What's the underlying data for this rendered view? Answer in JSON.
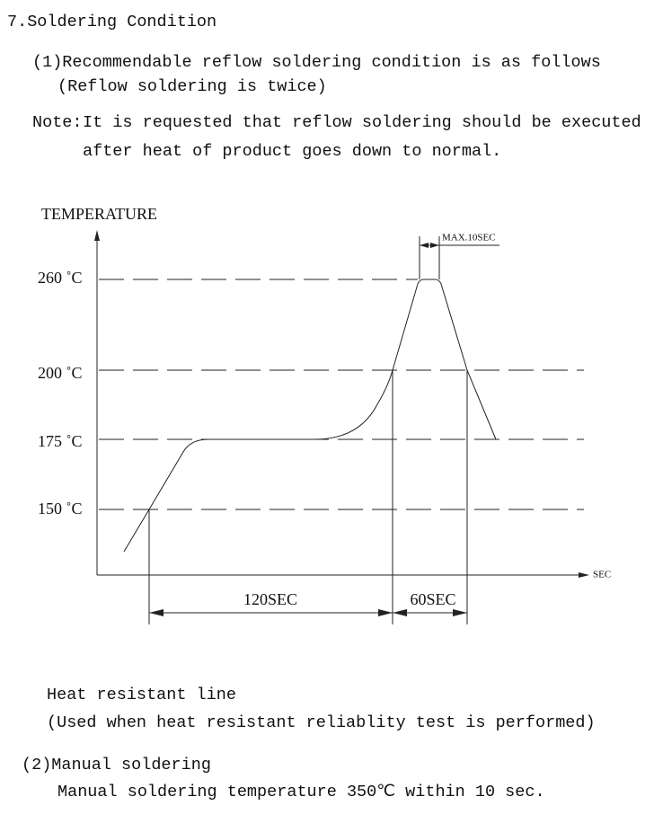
{
  "section": {
    "title": "7.Soldering Condition"
  },
  "reflow": {
    "title": "(1)Recommendable reflow soldering condition is as follows",
    "subtitle": "(Reflow soldering is twice)",
    "note_label": "Note:",
    "note_lines": [
      "It is requested that reflow soldering should be executed",
      "after heat of product goes down to normal."
    ]
  },
  "diagram": {
    "y_label": "TEMPERATURE",
    "x_label": "SEC",
    "levels": [
      "260 ˚C",
      "200 ˚C",
      "175 ˚C",
      "150 ˚C"
    ],
    "peak_note": "MAX.10SEC",
    "spans": [
      "120SEC",
      "60SEC"
    ]
  },
  "heat_resistant": {
    "title": "Heat resistant line",
    "subtitle": "(Used when heat resistant reliablity test is performed)"
  },
  "manual": {
    "title": "(2)Manual soldering",
    "text": "Manual soldering temperature 350℃ within 10 sec."
  }
}
